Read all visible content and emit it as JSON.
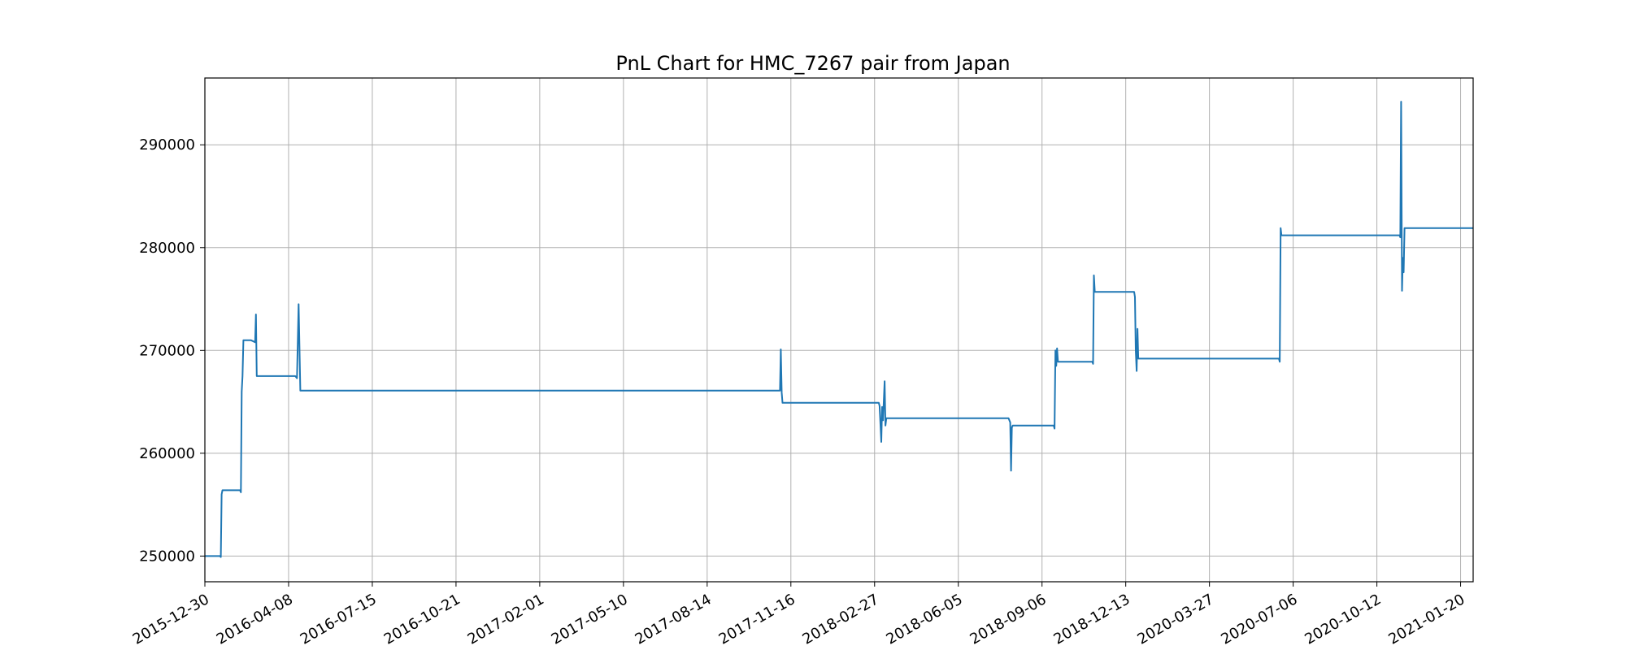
{
  "chart_data": {
    "type": "line",
    "title": "PnL Chart for HMC_7267 pair from Japan",
    "xlabel": "",
    "ylabel": "",
    "grid": true,
    "x_tick_labels": [
      "2015-12-30",
      "2016-04-08",
      "2016-07-15",
      "2016-10-21",
      "2017-02-01",
      "2017-05-10",
      "2017-08-14",
      "2017-11-16",
      "2018-02-27",
      "2018-06-05",
      "2018-09-06",
      "2018-12-13",
      "2020-03-27",
      "2020-07-06",
      "2020-10-12",
      "2021-01-20"
    ],
    "y_ticks": [
      250000,
      260000,
      270000,
      280000,
      290000
    ],
    "y_tick_labels": [
      "250000",
      "260000",
      "270000",
      "280000",
      "290000"
    ],
    "ylim": [
      247500,
      296500
    ],
    "xlim": [
      0,
      15.15
    ],
    "series": [
      {
        "color": "#1f77b4",
        "x": [
          0,
          0.18,
          0.19,
          0.2,
          0.21,
          0.22,
          0.42,
          0.43,
          0.44,
          0.45,
          0.46,
          0.48,
          0.5,
          0.55,
          0.6,
          0.61,
          0.62,
          0.63,
          0.64,
          0.66,
          1.08,
          1.1,
          1.12,
          1.14,
          1.16,
          1.2,
          6.87,
          6.88,
          6.89,
          6.9,
          8.05,
          8.06,
          8.08,
          8.09,
          8.1,
          8.12,
          8.13,
          8.14,
          8.15,
          8.16,
          8.18,
          9.6,
          9.62,
          9.63,
          9.64,
          9.65,
          9.66,
          9.67,
          10.14,
          10.15,
          10.16,
          10.17,
          10.18,
          10.19,
          10.2,
          10.23,
          10.6,
          10.61,
          10.62,
          10.63,
          10.64,
          10.65,
          11.1,
          11.11,
          11.12,
          11.13,
          11.14,
          11.15,
          11.16,
          11.18,
          11.2,
          12.83,
          12.84,
          12.85,
          12.86,
          14.26,
          14.27,
          14.28,
          14.29,
          14.3,
          14.31,
          14.32,
          14.33,
          14.35,
          14.4,
          15.15
        ],
        "y": [
          250000,
          250000,
          249900,
          256000,
          256400,
          256400,
          256400,
          256200,
          266000,
          267500,
          271000,
          271000,
          271000,
          271000,
          270800,
          273500,
          267500,
          267500,
          267500,
          267500,
          267500,
          267300,
          274500,
          266100,
          266100,
          266100,
          266100,
          270100,
          265900,
          264900,
          264900,
          264600,
          261100,
          264500,
          263200,
          267000,
          262700,
          263400,
          263400,
          263400,
          263400,
          263400,
          263000,
          258300,
          262500,
          262700,
          262700,
          262700,
          262700,
          262400,
          270000,
          268500,
          270200,
          268900,
          268900,
          268900,
          268900,
          268700,
          277300,
          275700,
          275700,
          275700,
          275700,
          275200,
          270000,
          268000,
          272100,
          269200,
          269200,
          269200,
          269200,
          269200,
          268900,
          281900,
          281200,
          281200,
          281200,
          281000,
          294200,
          275800,
          279000,
          277600,
          281900,
          281900,
          281900,
          281900
        ]
      }
    ]
  }
}
